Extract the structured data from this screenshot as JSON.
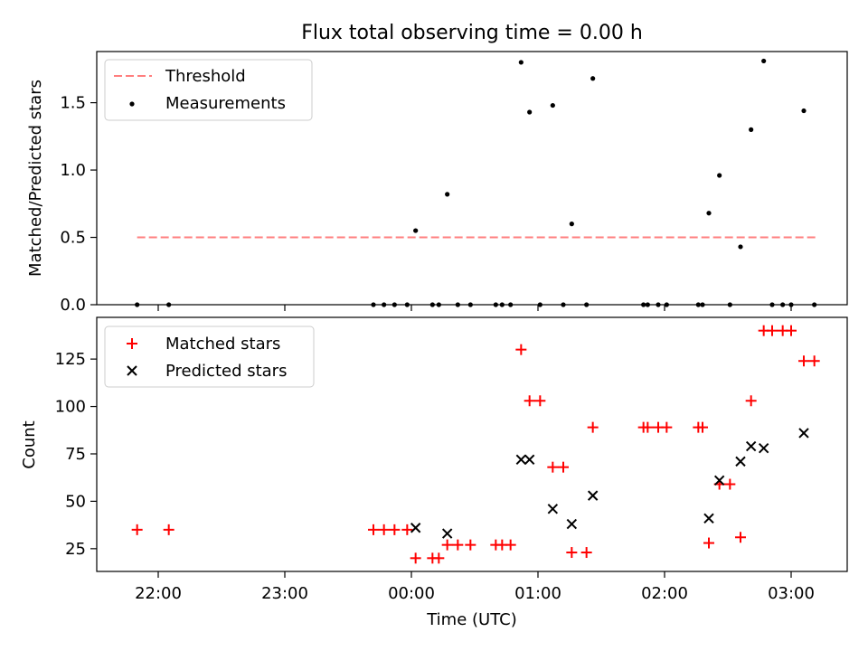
{
  "title": "Flux total observing time = 0.00 h",
  "xlabel": "Time (UTC)",
  "x_tick_labels": [
    "22:00",
    "23:00",
    "00:00",
    "01:00",
    "02:00",
    "03:00"
  ],
  "colors": {
    "threshold": "#ff7f7f",
    "measurement": "#000000",
    "matched": "#ff0000",
    "predicted": "#000000"
  },
  "chart_data": [
    {
      "type": "scatter",
      "ylabel": "Matched/Predicted stars",
      "ylim": [
        0,
        1.88
      ],
      "y_ticks": [
        0.0,
        0.5,
        1.0,
        1.5
      ],
      "y_tick_labels": [
        "0.0",
        "0.5",
        "1.0",
        "1.5"
      ],
      "legend_position": "upper left",
      "legend": [
        "Threshold",
        "Measurements"
      ],
      "threshold": {
        "name": "Threshold",
        "value": 0.5,
        "x_range": [
          "21:50",
          "03:13"
        ],
        "style": "dashed"
      },
      "series": [
        {
          "name": "Measurements",
          "marker": "dot",
          "points": [
            [
              "21:50",
              0.0
            ],
            [
              "22:05",
              0.0
            ],
            [
              "23:42",
              0.0
            ],
            [
              "23:47",
              0.0
            ],
            [
              "23:52",
              0.0
            ],
            [
              "23:58",
              0.0
            ],
            [
              "00:02",
              0.55
            ],
            [
              "00:10",
              0.0
            ],
            [
              "00:13",
              0.0
            ],
            [
              "00:17",
              0.82
            ],
            [
              "00:22",
              0.0
            ],
            [
              "00:28",
              0.0
            ],
            [
              "00:40",
              0.0
            ],
            [
              "00:43",
              0.0
            ],
            [
              "00:47",
              0.0
            ],
            [
              "00:52",
              1.8
            ],
            [
              "00:56",
              1.43
            ],
            [
              "01:01",
              0.0
            ],
            [
              "01:07",
              1.48
            ],
            [
              "01:12",
              0.0
            ],
            [
              "01:16",
              0.6
            ],
            [
              "01:23",
              0.0
            ],
            [
              "01:26",
              1.68
            ],
            [
              "01:50",
              0.0
            ],
            [
              "01:52",
              0.0
            ],
            [
              "01:57",
              0.0
            ],
            [
              "02:01",
              0.0
            ],
            [
              "02:16",
              0.0
            ],
            [
              "02:18",
              0.0
            ],
            [
              "02:21",
              0.68
            ],
            [
              "02:26",
              0.96
            ],
            [
              "02:31",
              0.0
            ],
            [
              "02:36",
              0.43
            ],
            [
              "02:41",
              1.3
            ],
            [
              "02:47",
              1.81
            ],
            [
              "02:51",
              0.0
            ],
            [
              "02:56",
              0.0
            ],
            [
              "03:00",
              0.0
            ],
            [
              "03:06",
              1.44
            ],
            [
              "03:11",
              0.0
            ]
          ]
        }
      ]
    },
    {
      "type": "scatter",
      "ylabel": "Count",
      "ylim": [
        13,
        147
      ],
      "y_ticks": [
        25,
        50,
        75,
        100,
        125
      ],
      "y_tick_labels": [
        "25",
        "50",
        "75",
        "100",
        "125"
      ],
      "legend_position": "upper left",
      "legend": [
        "Matched stars",
        "Predicted stars"
      ],
      "series": [
        {
          "name": "Matched stars",
          "marker": "plus",
          "points": [
            [
              "21:50",
              35
            ],
            [
              "22:05",
              35
            ],
            [
              "23:42",
              35
            ],
            [
              "23:47",
              35
            ],
            [
              "23:52",
              35
            ],
            [
              "23:58",
              35
            ],
            [
              "00:02",
              20
            ],
            [
              "00:10",
              20
            ],
            [
              "00:13",
              20
            ],
            [
              "00:17",
              27
            ],
            [
              "00:22",
              27
            ],
            [
              "00:28",
              27
            ],
            [
              "00:40",
              27
            ],
            [
              "00:43",
              27
            ],
            [
              "00:47",
              27
            ],
            [
              "00:52",
              130
            ],
            [
              "00:56",
              103
            ],
            [
              "01:01",
              103
            ],
            [
              "01:07",
              68
            ],
            [
              "01:12",
              68
            ],
            [
              "01:16",
              23
            ],
            [
              "01:23",
              23
            ],
            [
              "01:26",
              89
            ],
            [
              "01:50",
              89
            ],
            [
              "01:52",
              89
            ],
            [
              "01:57",
              89
            ],
            [
              "02:01",
              89
            ],
            [
              "02:16",
              89
            ],
            [
              "02:18",
              89
            ],
            [
              "02:21",
              28
            ],
            [
              "02:26",
              59
            ],
            [
              "02:31",
              59
            ],
            [
              "02:36",
              31
            ],
            [
              "02:41",
              103
            ],
            [
              "02:47",
              140
            ],
            [
              "02:51",
              140
            ],
            [
              "02:56",
              140
            ],
            [
              "03:00",
              140
            ],
            [
              "03:06",
              124
            ],
            [
              "03:11",
              124
            ]
          ]
        },
        {
          "name": "Predicted stars",
          "marker": "x",
          "points": [
            [
              "00:02",
              36
            ],
            [
              "00:17",
              33
            ],
            [
              "00:52",
              72
            ],
            [
              "00:56",
              72
            ],
            [
              "01:07",
              46
            ],
            [
              "01:16",
              38
            ],
            [
              "01:26",
              53
            ],
            [
              "02:21",
              41
            ],
            [
              "02:26",
              61
            ],
            [
              "02:36",
              71
            ],
            [
              "02:41",
              79
            ],
            [
              "02:47",
              78
            ],
            [
              "03:06",
              86
            ]
          ]
        }
      ]
    }
  ]
}
